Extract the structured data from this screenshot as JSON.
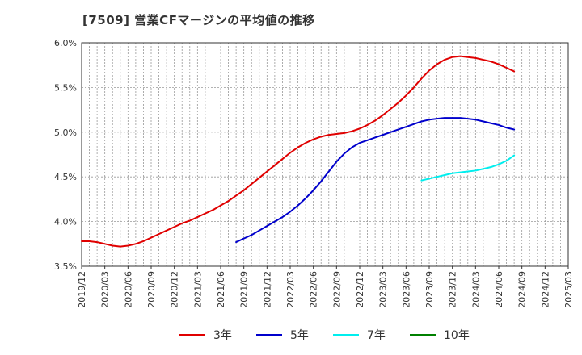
{
  "chart_data": {
    "type": "line",
    "title": "[7509]  営業CFマージンの平均値の推移",
    "xlabel": "",
    "ylabel": "",
    "ylim": [
      3.5,
      6.0
    ],
    "y_ticks": [
      "3.5%",
      "4.0%",
      "4.5%",
      "5.0%",
      "5.5%",
      "6.0%"
    ],
    "y_tick_values": [
      3.5,
      4.0,
      4.5,
      5.0,
      5.5,
      6.0
    ],
    "x_range": [
      "2019/12",
      "2025/03"
    ],
    "x_ticks": [
      "2019/12",
      "2020/03",
      "2020/06",
      "2020/09",
      "2020/12",
      "2021/03",
      "2021/06",
      "2021/09",
      "2021/12",
      "2022/03",
      "2022/06",
      "2022/09",
      "2022/12",
      "2023/03",
      "2023/06",
      "2023/09",
      "2023/12",
      "2024/03",
      "2024/06",
      "2024/09",
      "2024/12",
      "2025/03"
    ],
    "grid": true,
    "legend_position": "bottom",
    "series": [
      {
        "name": "3年",
        "color": "#e00000",
        "points": [
          [
            "2019/12",
            3.78
          ],
          [
            "2020/01",
            3.78
          ],
          [
            "2020/02",
            3.77
          ],
          [
            "2020/03",
            3.75
          ],
          [
            "2020/04",
            3.73
          ],
          [
            "2020/05",
            3.72
          ],
          [
            "2020/06",
            3.73
          ],
          [
            "2020/07",
            3.75
          ],
          [
            "2020/08",
            3.78
          ],
          [
            "2020/09",
            3.82
          ],
          [
            "2020/10",
            3.86
          ],
          [
            "2020/11",
            3.9
          ],
          [
            "2020/12",
            3.94
          ],
          [
            "2021/01",
            3.98
          ],
          [
            "2021/02",
            4.01
          ],
          [
            "2021/03",
            4.05
          ],
          [
            "2021/04",
            4.09
          ],
          [
            "2021/05",
            4.13
          ],
          [
            "2021/06",
            4.18
          ],
          [
            "2021/07",
            4.23
          ],
          [
            "2021/08",
            4.29
          ],
          [
            "2021/09",
            4.35
          ],
          [
            "2021/10",
            4.42
          ],
          [
            "2021/11",
            4.49
          ],
          [
            "2021/12",
            4.56
          ],
          [
            "2022/01",
            4.63
          ],
          [
            "2022/02",
            4.7
          ],
          [
            "2022/03",
            4.77
          ],
          [
            "2022/04",
            4.83
          ],
          [
            "2022/05",
            4.88
          ],
          [
            "2022/06",
            4.92
          ],
          [
            "2022/07",
            4.95
          ],
          [
            "2022/08",
            4.97
          ],
          [
            "2022/09",
            4.98
          ],
          [
            "2022/10",
            4.99
          ],
          [
            "2022/11",
            5.01
          ],
          [
            "2022/12",
            5.04
          ],
          [
            "2023/01",
            5.08
          ],
          [
            "2023/02",
            5.13
          ],
          [
            "2023/03",
            5.19
          ],
          [
            "2023/04",
            5.26
          ],
          [
            "2023/05",
            5.33
          ],
          [
            "2023/06",
            5.41
          ],
          [
            "2023/07",
            5.5
          ],
          [
            "2023/08",
            5.6
          ],
          [
            "2023/09",
            5.69
          ],
          [
            "2023/10",
            5.76
          ],
          [
            "2023/11",
            5.81
          ],
          [
            "2023/12",
            5.84
          ],
          [
            "2024/01",
            5.85
          ],
          [
            "2024/02",
            5.84
          ],
          [
            "2024/03",
            5.83
          ],
          [
            "2024/04",
            5.81
          ],
          [
            "2024/05",
            5.79
          ],
          [
            "2024/06",
            5.76
          ],
          [
            "2024/07",
            5.72
          ],
          [
            "2024/08",
            5.68
          ]
        ]
      },
      {
        "name": "5年",
        "color": "#0000cc",
        "points": [
          [
            "2021/08",
            3.77
          ],
          [
            "2021/09",
            3.81
          ],
          [
            "2021/10",
            3.85
          ],
          [
            "2021/11",
            3.9
          ],
          [
            "2021/12",
            3.95
          ],
          [
            "2022/01",
            4.0
          ],
          [
            "2022/02",
            4.05
          ],
          [
            "2022/03",
            4.11
          ],
          [
            "2022/04",
            4.18
          ],
          [
            "2022/05",
            4.26
          ],
          [
            "2022/06",
            4.35
          ],
          [
            "2022/07",
            4.45
          ],
          [
            "2022/08",
            4.56
          ],
          [
            "2022/09",
            4.67
          ],
          [
            "2022/10",
            4.76
          ],
          [
            "2022/11",
            4.83
          ],
          [
            "2022/12",
            4.88
          ],
          [
            "2023/01",
            4.91
          ],
          [
            "2023/02",
            4.94
          ],
          [
            "2023/03",
            4.97
          ],
          [
            "2023/04",
            5.0
          ],
          [
            "2023/05",
            5.03
          ],
          [
            "2023/06",
            5.06
          ],
          [
            "2023/07",
            5.09
          ],
          [
            "2023/08",
            5.12
          ],
          [
            "2023/09",
            5.14
          ],
          [
            "2023/10",
            5.15
          ],
          [
            "2023/11",
            5.16
          ],
          [
            "2023/12",
            5.16
          ],
          [
            "2024/01",
            5.16
          ],
          [
            "2024/02",
            5.15
          ],
          [
            "2024/03",
            5.14
          ],
          [
            "2024/04",
            5.12
          ],
          [
            "2024/05",
            5.1
          ],
          [
            "2024/06",
            5.08
          ],
          [
            "2024/07",
            5.05
          ],
          [
            "2024/08",
            5.03
          ]
        ]
      },
      {
        "name": "7年",
        "color": "#00eeee",
        "points": [
          [
            "2023/08",
            4.46
          ],
          [
            "2023/09",
            4.48
          ],
          [
            "2023/10",
            4.5
          ],
          [
            "2023/11",
            4.52
          ],
          [
            "2023/12",
            4.54
          ],
          [
            "2024/01",
            4.55
          ],
          [
            "2024/02",
            4.56
          ],
          [
            "2024/03",
            4.57
          ],
          [
            "2024/04",
            4.59
          ],
          [
            "2024/05",
            4.61
          ],
          [
            "2024/06",
            4.64
          ],
          [
            "2024/07",
            4.68
          ],
          [
            "2024/08",
            4.74
          ]
        ]
      },
      {
        "name": "10年",
        "color": "#008000",
        "points": []
      }
    ]
  }
}
